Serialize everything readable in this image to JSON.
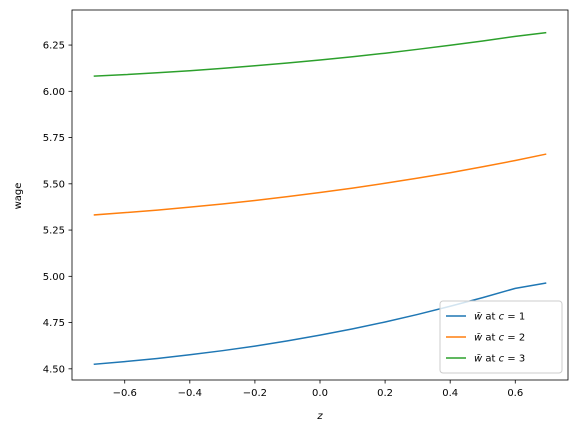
{
  "chart_data": {
    "type": "line",
    "title": "",
    "xlabel": "z",
    "ylabel": "wage",
    "xlim": [
      -0.762,
      0.762
    ],
    "ylim": [
      4.4396,
      6.4395
    ],
    "grid": false,
    "legend_position": "lower-right",
    "x_ticks": [
      -0.6,
      -0.4,
      -0.2,
      0.0,
      0.2,
      0.4,
      0.6
    ],
    "x_tick_labels": [
      "−0.6",
      "−0.4",
      "−0.2",
      "0.0",
      "0.2",
      "0.4",
      "0.6"
    ],
    "y_ticks": [
      4.5,
      4.75,
      5.0,
      5.25,
      5.5,
      5.75,
      6.0,
      6.25
    ],
    "y_tick_labels": [
      "4.50",
      "4.75",
      "5.00",
      "5.25",
      "5.50",
      "5.75",
      "6.00",
      "6.25"
    ],
    "x": [
      -0.693,
      -0.6,
      -0.5,
      -0.4,
      -0.3,
      -0.2,
      -0.1,
      0.0,
      0.1,
      0.2,
      0.3,
      0.4,
      0.5,
      0.6,
      0.693
    ],
    "series": [
      {
        "name_prefix": "w̄",
        "name_mid": " at ",
        "name_var": "c",
        "name_eq": " = 1",
        "color": "#1f77b4",
        "values": [
          4.525,
          4.539,
          4.556,
          4.576,
          4.598,
          4.623,
          4.651,
          4.682,
          4.716,
          4.753,
          4.794,
          4.838,
          4.885,
          4.935,
          4.963
        ]
      },
      {
        "name_prefix": "w̄",
        "name_mid": " at ",
        "name_var": "c",
        "name_eq": " = 2",
        "color": "#ff7f0e",
        "values": [
          5.332,
          5.344,
          5.358,
          5.374,
          5.391,
          5.41,
          5.431,
          5.453,
          5.477,
          5.503,
          5.531,
          5.56,
          5.592,
          5.626,
          5.66
        ]
      },
      {
        "name_prefix": "w̄",
        "name_mid": " at ",
        "name_var": "c",
        "name_eq": " = 3",
        "color": "#2ca02c",
        "values": [
          6.082,
          6.09,
          6.1,
          6.111,
          6.124,
          6.138,
          6.153,
          6.169,
          6.187,
          6.206,
          6.227,
          6.249,
          6.272,
          6.297,
          6.317
        ]
      }
    ]
  }
}
